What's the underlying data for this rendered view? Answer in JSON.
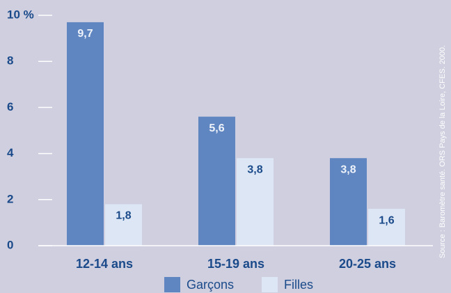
{
  "chart_data": {
    "type": "bar",
    "categories": [
      "12-14 ans",
      "15-19 ans",
      "20-25 ans"
    ],
    "series": [
      {
        "name": "Garçons",
        "color": "#5f86c0",
        "values": [
          9.7,
          5.6,
          3.8
        ],
        "value_labels": [
          "9,7",
          "5,6",
          "3,8"
        ]
      },
      {
        "name": "Filles",
        "color": "#dce6f4",
        "values": [
          1.8,
          3.8,
          1.6
        ],
        "value_labels": [
          "1,8",
          "3,8",
          "1,6"
        ]
      }
    ],
    "ylim": [
      0,
      10
    ],
    "yticks": [
      0,
      2,
      4,
      6,
      8,
      {
        "value": 10,
        "label": "10 %"
      }
    ],
    "source": "Source : Baromètre santé. ORS Pays de la Loire, CFES. 2000."
  }
}
